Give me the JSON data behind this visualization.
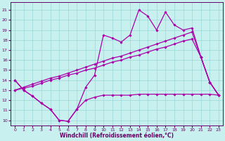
{
  "bg_color": "#c8f0ee",
  "line_color": "#aa00aa",
  "grid_color": "#98d8d8",
  "xlabel": "Windchill (Refroidissement éolien,°C)",
  "xlim_min": -0.5,
  "xlim_max": 23.5,
  "ylim_min": 9.5,
  "ylim_max": 21.8,
  "xticks": [
    0,
    1,
    2,
    3,
    4,
    5,
    6,
    7,
    8,
    9,
    10,
    11,
    12,
    13,
    14,
    15,
    16,
    17,
    18,
    19,
    20,
    21,
    22,
    23
  ],
  "yticks": [
    10,
    11,
    12,
    13,
    14,
    15,
    16,
    17,
    18,
    19,
    20,
    21
  ],
  "line_jagged_x": [
    0,
    1,
    2,
    3,
    4,
    5,
    6,
    7,
    8,
    9,
    10,
    11,
    12,
    13,
    14,
    15,
    16,
    17,
    18,
    19,
    20,
    21,
    22,
    23
  ],
  "line_jagged_y": [
    14.0,
    13.0,
    12.4,
    11.7,
    11.1,
    10.0,
    9.9,
    11.1,
    13.3,
    14.5,
    18.5,
    18.2,
    17.8,
    18.5,
    21.0,
    20.4,
    19.0,
    20.8,
    19.5,
    19.0,
    19.2,
    16.3,
    13.8,
    12.5
  ],
  "line_diag1_x": [
    0,
    1,
    2,
    3,
    4,
    5,
    6,
    7,
    8,
    9,
    10,
    11,
    12,
    13,
    14,
    15,
    16,
    17,
    18,
    19,
    20,
    21,
    22,
    23
  ],
  "line_diag1_y": [
    13.0,
    13.3,
    13.6,
    13.9,
    14.2,
    14.4,
    14.7,
    15.0,
    15.3,
    15.6,
    15.9,
    16.2,
    16.4,
    16.7,
    17.0,
    17.3,
    17.6,
    17.9,
    18.2,
    18.5,
    18.8,
    16.3,
    13.8,
    12.5
  ],
  "line_diag2_x": [
    0,
    1,
    2,
    3,
    4,
    5,
    6,
    7,
    8,
    9,
    10,
    11,
    12,
    13,
    14,
    15,
    16,
    17,
    18,
    19,
    20,
    21,
    22,
    23
  ],
  "line_diag2_y": [
    13.0,
    13.2,
    13.4,
    13.7,
    14.0,
    14.2,
    14.5,
    14.7,
    15.0,
    15.2,
    15.5,
    15.8,
    16.0,
    16.3,
    16.5,
    16.8,
    17.1,
    17.3,
    17.6,
    17.9,
    18.1,
    16.3,
    13.8,
    12.5
  ],
  "line_flat_x": [
    0,
    1,
    2,
    3,
    4,
    5,
    6,
    7,
    8,
    9,
    10,
    11,
    12,
    13,
    14,
    15,
    16,
    17,
    18,
    19,
    20,
    21,
    22,
    23
  ],
  "line_flat_y": [
    14.0,
    13.0,
    12.4,
    11.7,
    11.1,
    10.0,
    9.9,
    11.1,
    12.0,
    12.3,
    12.5,
    12.5,
    12.5,
    12.5,
    12.6,
    12.6,
    12.6,
    12.6,
    12.6,
    12.6,
    12.6,
    12.6,
    12.6,
    12.5
  ]
}
